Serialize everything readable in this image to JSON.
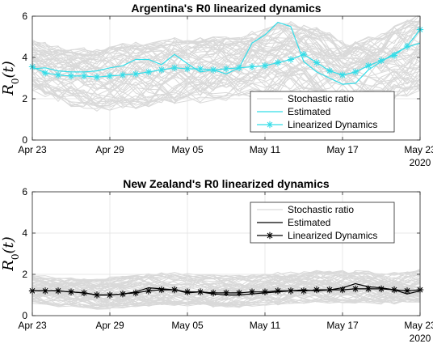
{
  "chart_data": [
    {
      "type": "line",
      "title": "Argentina's R0 linearized dynamics",
      "ylabel": "R_0(t)",
      "xlabel": "",
      "ylim": [
        0,
        6
      ],
      "yticks": [
        0,
        2,
        4,
        6
      ],
      "xticks": [
        "Apr 23",
        "Apr 29",
        "May 05",
        "May 11",
        "May 17",
        "May 23"
      ],
      "xtick_days": [
        0,
        6,
        12,
        18,
        24,
        30
      ],
      "year_label": "2020",
      "grid": true,
      "legend_position": "bottom-right",
      "x_days": [
        0,
        1,
        2,
        3,
        4,
        5,
        6,
        7,
        8,
        9,
        10,
        11,
        12,
        13,
        14,
        15,
        16,
        17,
        18,
        19,
        20,
        21,
        22,
        23,
        24,
        25,
        26,
        27,
        28,
        29,
        30
      ],
      "stochastic_band": {
        "lower": [
          2.5,
          2.2,
          2.0,
          1.8,
          1.7,
          1.6,
          1.6,
          1.7,
          1.7,
          1.8,
          1.9,
          1.9,
          2.0,
          2.0,
          2.1,
          2.1,
          2.1,
          2.2,
          2.3,
          2.4,
          2.5,
          2.4,
          2.3,
          2.1,
          1.9,
          1.8,
          1.9,
          2.0,
          2.1,
          2.3,
          2.6
        ],
        "upper": [
          4.8,
          4.6,
          4.4,
          4.3,
          4.3,
          4.3,
          4.4,
          4.5,
          4.6,
          4.6,
          4.7,
          4.8,
          4.8,
          4.8,
          4.8,
          4.8,
          4.9,
          5.1,
          5.3,
          5.5,
          5.6,
          5.5,
          5.3,
          5.0,
          4.6,
          4.6,
          4.8,
          5.0,
          5.3,
          5.6,
          6.0
        ]
      },
      "series": [
        {
          "name": "Stochastic ratio",
          "color": "#d9d9d9",
          "style": "line"
        },
        {
          "name": "Estimated",
          "color": "#33dde8",
          "style": "line",
          "values": [
            3.45,
            3.5,
            3.35,
            3.3,
            3.3,
            3.35,
            3.5,
            3.6,
            3.9,
            3.9,
            3.65,
            4.15,
            3.7,
            3.3,
            3.4,
            3.2,
            3.5,
            4.7,
            5.1,
            5.7,
            5.5,
            3.8,
            3.3,
            3.0,
            2.7,
            2.75,
            3.4,
            3.8,
            4.2,
            4.5,
            4.7
          ]
        },
        {
          "name": "Linearized Dynamics",
          "color": "#33dde8",
          "style": "line-star",
          "values": [
            3.55,
            3.25,
            3.15,
            3.1,
            3.1,
            3.05,
            3.1,
            3.15,
            3.2,
            3.3,
            3.4,
            3.5,
            3.45,
            3.45,
            3.4,
            3.45,
            3.5,
            3.55,
            3.6,
            3.75,
            3.9,
            4.15,
            3.75,
            3.35,
            3.15,
            3.3,
            3.6,
            3.85,
            4.1,
            4.55,
            5.35
          ]
        }
      ]
    },
    {
      "type": "line",
      "title": "New Zealand's R0 linearized dynamics",
      "ylabel": "R_0(t)",
      "xlabel": "",
      "ylim": [
        0,
        6
      ],
      "yticks": [
        0,
        2,
        4,
        6
      ],
      "xticks": [
        "Apr 23",
        "Apr 29",
        "May 05",
        "May 11",
        "May 17",
        "May 23"
      ],
      "xtick_days": [
        0,
        6,
        12,
        18,
        24,
        30
      ],
      "year_label": "2020",
      "grid": true,
      "legend_position": "top-right",
      "x_days": [
        0,
        1,
        2,
        3,
        4,
        5,
        6,
        7,
        8,
        9,
        10,
        11,
        12,
        13,
        14,
        15,
        16,
        17,
        18,
        19,
        20,
        21,
        22,
        23,
        24,
        25,
        26,
        27,
        28,
        29,
        30
      ],
      "stochastic_band": {
        "lower": [
          0.6,
          0.55,
          0.5,
          0.5,
          0.45,
          0.4,
          0.4,
          0.45,
          0.5,
          0.55,
          0.6,
          0.6,
          0.55,
          0.55,
          0.5,
          0.5,
          0.5,
          0.55,
          0.6,
          0.6,
          0.65,
          0.65,
          0.7,
          0.7,
          0.7,
          0.7,
          0.7,
          0.65,
          0.65,
          0.7,
          0.75
        ],
        "upper": [
          1.9,
          1.85,
          1.8,
          1.8,
          1.75,
          1.75,
          1.8,
          1.85,
          1.9,
          1.95,
          2.0,
          2.0,
          1.95,
          1.9,
          1.9,
          1.85,
          1.85,
          1.9,
          1.95,
          2.0,
          2.05,
          2.05,
          2.1,
          2.1,
          2.1,
          2.1,
          2.1,
          2.05,
          2.05,
          2.1,
          2.15
        ]
      },
      "series": [
        {
          "name": "Stochastic ratio",
          "color": "#d9d9d9",
          "style": "line"
        },
        {
          "name": "Estimated",
          "color": "#000000",
          "style": "line",
          "values": [
            1.2,
            1.2,
            1.2,
            1.15,
            1.1,
            1.0,
            1.0,
            1.05,
            1.15,
            1.35,
            1.3,
            1.25,
            1.1,
            1.15,
            1.05,
            1.0,
            1.0,
            1.05,
            1.1,
            1.15,
            1.2,
            1.25,
            1.2,
            1.25,
            1.35,
            1.55,
            1.4,
            1.35,
            1.25,
            1.05,
            1.2
          ]
        },
        {
          "name": "Linearized Dynamics",
          "color": "#000000",
          "style": "line-star",
          "values": [
            1.2,
            1.2,
            1.2,
            1.15,
            1.1,
            1.0,
            1.0,
            1.05,
            1.1,
            1.2,
            1.25,
            1.25,
            1.15,
            1.15,
            1.1,
            1.1,
            1.1,
            1.15,
            1.15,
            1.2,
            1.2,
            1.2,
            1.25,
            1.25,
            1.25,
            1.3,
            1.3,
            1.3,
            1.25,
            1.2,
            1.25
          ]
        }
      ]
    }
  ]
}
